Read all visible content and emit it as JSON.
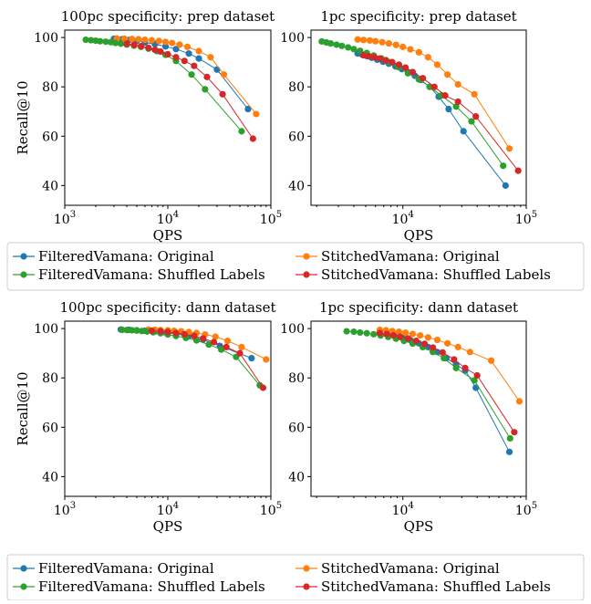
{
  "colors": {
    "filtered_original": "#1f77b4",
    "stitched_original": "#ff7f0e",
    "filtered_shuffled": "#2ca02c",
    "stitched_shuffled": "#d62728"
  },
  "shared": {
    "xlabel": "QPS",
    "ylabel": "Recall@10",
    "y_ticks": [
      "40",
      "60",
      "80",
      "100"
    ],
    "x_tick_mantissa": "10",
    "x_tick_exponents": [
      "3",
      "4",
      "5"
    ]
  },
  "legends": [
    {
      "entries": [
        {
          "label": "FilteredVamana: Original",
          "color": "#1f77b4"
        },
        {
          "label": "StitchedVamana: Original",
          "color": "#ff7f0e"
        },
        {
          "label": "FilteredVamana: Shuffled Labels",
          "color": "#2ca02c"
        },
        {
          "label": "StitchedVamana: Shuffled Labels",
          "color": "#d62728"
        }
      ]
    },
    {
      "entries": [
        {
          "label": "FilteredVamana: Original",
          "color": "#1f77b4"
        },
        {
          "label": "StitchedVamana: Original",
          "color": "#ff7f0e"
        },
        {
          "label": "FilteredVamana: Shuffled Labels",
          "color": "#2ca02c"
        },
        {
          "label": "StitchedVamana: Shuffled Labels",
          "color": "#d62728"
        }
      ]
    }
  ],
  "chart_data": [
    {
      "type": "line",
      "title": "100pc specificity: prep dataset",
      "xlabel": "QPS",
      "ylabel": "Recall@10",
      "x_scale": "log",
      "xlim": [
        1000,
        100000
      ],
      "ylim": [
        32,
        103
      ],
      "show_x_ticks": false,
      "series": [
        {
          "name": "FilteredVamana: Original",
          "color": "#1f77b4",
          "x": [
            3000,
            3600,
            4200,
            5000,
            6000,
            7500,
            9500,
            12000,
            16000,
            20000,
            30000,
            60000
          ],
          "y": [
            99.5,
            99.3,
            99.0,
            98.6,
            98.0,
            97.3,
            96.4,
            95.3,
            93.5,
            91.5,
            87.0,
            71.0
          ]
        },
        {
          "name": "StitchedVamana: Original",
          "color": "#ff7f0e",
          "x": [
            3200,
            3800,
            4500,
            5200,
            6000,
            7000,
            8200,
            9500,
            11000,
            13000,
            15500,
            20000,
            26000,
            35000,
            72000
          ],
          "y": [
            99.6,
            99.5,
            99.4,
            99.3,
            99.1,
            98.9,
            98.6,
            98.2,
            97.8,
            97.1,
            96.2,
            94.5,
            92.0,
            85.0,
            69.0
          ]
        },
        {
          "name": "FilteredVamana: Shuffled Labels",
          "color": "#2ca02c",
          "x": [
            1600,
            1800,
            2000,
            2200,
            2500,
            2800,
            3100,
            3500,
            4000,
            4700,
            5500,
            6500,
            7800,
            9500,
            12000,
            17000,
            23000,
            52000
          ],
          "y": [
            99.1,
            98.9,
            98.7,
            98.5,
            98.3,
            98.1,
            97.8,
            97.5,
            97.1,
            96.7,
            96.2,
            95.5,
            94.5,
            93.0,
            90.5,
            85.0,
            79.0,
            62.0
          ]
        },
        {
          "name": "StitchedVamana: Shuffled Labels",
          "color": "#d62728",
          "x": [
            4000,
            4700,
            5500,
            6500,
            7500,
            8500,
            10000,
            12000,
            14500,
            18000,
            24000,
            34000,
            67000
          ],
          "y": [
            97.5,
            97.0,
            96.5,
            95.8,
            95.0,
            94.3,
            93.2,
            92.0,
            90.5,
            88.5,
            84.0,
            77.0,
            59.0
          ]
        }
      ]
    },
    {
      "type": "line",
      "title": "1pc specificity: prep dataset",
      "xlabel": "QPS",
      "ylabel": "",
      "x_scale": "log",
      "xlim": [
        1800,
        100000
      ],
      "ylim": [
        32,
        103
      ],
      "show_x_ticks": false,
      "series": [
        {
          "name": "FilteredVamana: Original",
          "color": "#1f77b4",
          "x": [
            4300,
            4700,
            5100,
            5600,
            6200,
            6900,
            7700,
            8700,
            9800,
            11000,
            12500,
            14000,
            16500,
            19500,
            23500,
            31000,
            68000
          ],
          "y": [
            93.5,
            93.0,
            92.5,
            91.8,
            91.0,
            90.2,
            89.4,
            88.3,
            87.2,
            86.0,
            84.5,
            82.8,
            80.0,
            76.0,
            71.0,
            62.0,
            40.0
          ]
        },
        {
          "name": "StitchedVamana: Original",
          "color": "#ff7f0e",
          "x": [
            4300,
            4800,
            5400,
            6000,
            6800,
            7700,
            8800,
            10000,
            11500,
            13500,
            16000,
            19000,
            23000,
            28000,
            38000,
            73000
          ],
          "y": [
            99.2,
            99.0,
            98.8,
            98.5,
            98.1,
            97.6,
            97.0,
            96.2,
            95.2,
            94.0,
            92.0,
            89.0,
            85.0,
            81.0,
            77.0,
            55.0
          ]
        },
        {
          "name": "FilteredVamana: Shuffled Labels",
          "color": "#2ca02c",
          "x": [
            2200,
            2400,
            2600,
            2900,
            3200,
            3600,
            4000,
            4500,
            5100,
            5800,
            6700,
            7800,
            9200,
            11000,
            13500,
            16500,
            20500,
            27000,
            36000,
            65000
          ],
          "y": [
            98.4,
            98.0,
            97.6,
            97.1,
            96.6,
            96.0,
            95.3,
            94.6,
            93.7,
            92.7,
            91.5,
            90.0,
            88.0,
            85.5,
            83.0,
            80.0,
            76.5,
            72.0,
            66.0,
            48.0
          ]
        },
        {
          "name": "StitchedVamana: Shuffled Labels",
          "color": "#d62728",
          "x": [
            4800,
            5300,
            5900,
            6500,
            7300,
            8200,
            9300,
            10500,
            12000,
            14500,
            18000,
            22000,
            28000,
            39000,
            86000
          ],
          "y": [
            92.8,
            92.4,
            92.0,
            91.5,
            90.8,
            90.0,
            89.0,
            87.8,
            86.0,
            83.5,
            80.0,
            76.5,
            74.0,
            68.0,
            46.0
          ]
        }
      ]
    },
    {
      "type": "line",
      "title": "100pc specificity: dann dataset",
      "xlabel": "QPS",
      "ylabel": "Recall@10",
      "x_scale": "log",
      "xlim": [
        1000,
        100000
      ],
      "ylim": [
        32,
        103
      ],
      "show_x_ticks": true,
      "series": [
        {
          "name": "FilteredVamana: Original",
          "color": "#1f77b4",
          "x": [
            3500,
            4200,
            5000,
            6000,
            7500,
            9500,
            12000,
            16000,
            22000,
            32000,
            65000
          ],
          "y": [
            99.6,
            99.5,
            99.3,
            99.1,
            98.8,
            98.4,
            97.8,
            97.0,
            95.5,
            93.0,
            88.0
          ]
        },
        {
          "name": "StitchedVamana: Original",
          "color": "#ff7f0e",
          "x": [
            6500,
            7500,
            8500,
            10000,
            11500,
            13500,
            16000,
            19000,
            23000,
            29000,
            38000,
            52000,
            90000
          ],
          "y": [
            99.6,
            99.5,
            99.4,
            99.3,
            99.1,
            98.9,
            98.6,
            98.2,
            97.6,
            96.7,
            95.0,
            92.5,
            87.5
          ]
        },
        {
          "name": "FilteredVamana: Shuffled Labels",
          "color": "#2ca02c",
          "x": [
            3600,
            4000,
            4500,
            5000,
            5600,
            6300,
            7200,
            8500,
            10000,
            12000,
            15000,
            19000,
            25000,
            33000,
            46000,
            78000
          ],
          "y": [
            99.5,
            99.4,
            99.3,
            99.2,
            99.0,
            98.8,
            98.5,
            98.1,
            97.6,
            97.0,
            96.2,
            95.2,
            93.5,
            91.5,
            88.5,
            77.0
          ]
        },
        {
          "name": "StitchedVamana: Shuffled Labels",
          "color": "#d62728",
          "x": [
            7000,
            8500,
            10000,
            12000,
            14500,
            18000,
            22000,
            28000,
            37000,
            50000,
            84000
          ],
          "y": [
            99.1,
            98.9,
            98.6,
            98.2,
            97.7,
            97.0,
            96.0,
            94.5,
            92.5,
            90.0,
            76.0
          ]
        }
      ]
    },
    {
      "type": "line",
      "title": "1pc specificity: dann dataset",
      "xlabel": "QPS",
      "ylabel": "",
      "x_scale": "log",
      "xlim": [
        1800,
        100000
      ],
      "ylim": [
        32,
        103
      ],
      "show_x_ticks": true,
      "series": [
        {
          "name": "FilteredVamana: Original",
          "color": "#1f77b4",
          "x": [
            6500,
            7500,
            8500,
            10000,
            11500,
            13500,
            16000,
            19000,
            22500,
            27000,
            32000,
            39000,
            73000
          ],
          "y": [
            98.0,
            97.5,
            97.0,
            96.2,
            95.3,
            94.0,
            92.5,
            90.5,
            88.0,
            85.5,
            83.0,
            76.0,
            50.0
          ]
        },
        {
          "name": "StitchedVamana: Original",
          "color": "#ff7f0e",
          "x": [
            6500,
            7300,
            8200,
            9300,
            10500,
            12000,
            13800,
            16000,
            19000,
            23000,
            28000,
            35000,
            52000,
            88000
          ],
          "y": [
            99.5,
            99.3,
            99.0,
            98.7,
            98.3,
            97.8,
            97.2,
            96.4,
            95.4,
            94.0,
            92.5,
            90.5,
            87.0,
            70.5
          ]
        },
        {
          "name": "FilteredVamana: Shuffled Labels",
          "color": "#2ca02c",
          "x": [
            3500,
            4000,
            4500,
            5100,
            5800,
            6600,
            7600,
            8800,
            10200,
            12000,
            14500,
            17500,
            21500,
            27000,
            38000,
            74000
          ],
          "y": [
            98.9,
            98.7,
            98.4,
            98.1,
            97.7,
            97.2,
            96.6,
            95.9,
            95.0,
            93.9,
            92.5,
            90.5,
            88.0,
            84.0,
            79.0,
            55.5
          ]
        },
        {
          "name": "StitchedVamana: Shuffled Labels",
          "color": "#d62728",
          "x": [
            6500,
            7400,
            8400,
            9500,
            11000,
            12800,
            15000,
            17500,
            21000,
            26000,
            32000,
            40000,
            80000
          ],
          "y": [
            98.2,
            97.8,
            97.3,
            96.7,
            96.0,
            95.0,
            93.8,
            92.3,
            90.3,
            87.5,
            84.0,
            81.0,
            58.0
          ]
        }
      ]
    }
  ]
}
